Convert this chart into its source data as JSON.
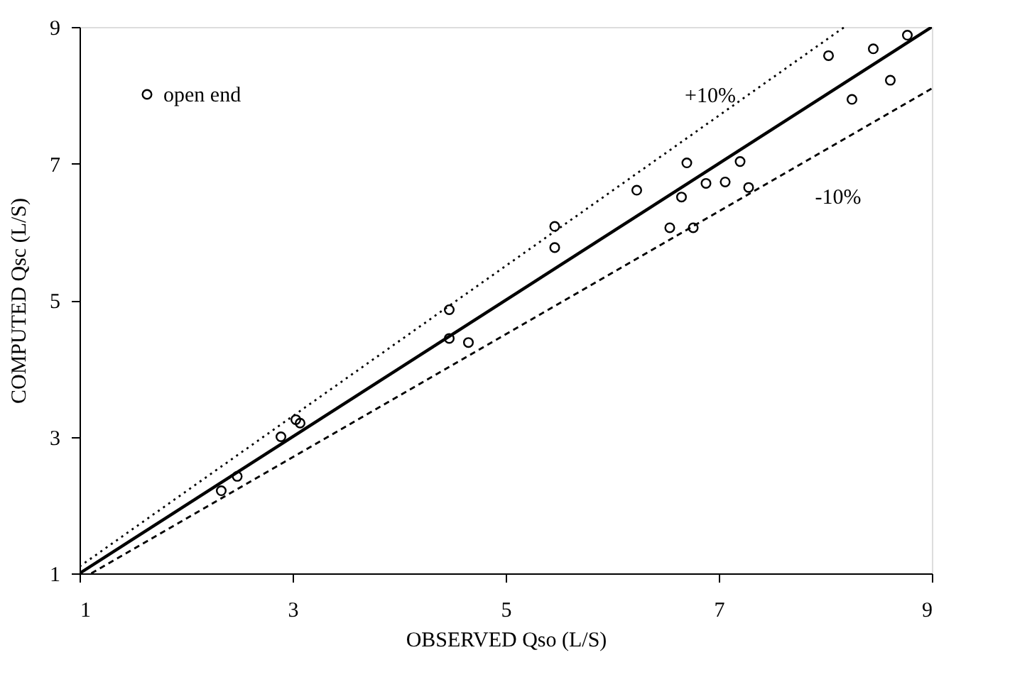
{
  "chart_data": {
    "type": "scatter",
    "xlabel": "OBSERVED Qso (L/S)",
    "ylabel": "COMPUTED Qsc (L/S)",
    "xlim": [
      1,
      9
    ],
    "ylim": [
      1,
      9
    ],
    "xticks": [
      1,
      3,
      5,
      7,
      9
    ],
    "yticks": [
      1,
      3,
      5,
      7,
      9
    ],
    "grid": false,
    "legend": "top left",
    "series": [
      {
        "name": "open end",
        "marker": "circle",
        "color": "#000000",
        "x": [
          2.33,
          2.48,
          2.89,
          3.03,
          3.07,
          4.47,
          4.47,
          4.65,
          5.46,
          5.46,
          6.23,
          6.7,
          6.65,
          6.54,
          6.76,
          6.88,
          7.06,
          7.2,
          7.28,
          8.03,
          8.25,
          8.45,
          8.61,
          8.77
        ],
        "values": [
          2.21,
          2.42,
          3.0,
          3.25,
          3.2,
          4.86,
          4.44,
          4.38,
          6.08,
          5.77,
          6.61,
          7.01,
          6.51,
          6.06,
          6.06,
          6.71,
          6.73,
          7.03,
          6.65,
          8.58,
          7.94,
          8.68,
          8.22,
          8.88
        ]
      },
      {
        "type": "line",
        "color": "#000000",
        "line_style": "solid",
        "x": [
          1,
          9
        ],
        "values": [
          1,
          9
        ]
      },
      {
        "type": "line",
        "color": "#000000",
        "line_style": "dotted",
        "x": [
          1,
          8.18
        ],
        "values": [
          1.1,
          9
        ]
      },
      {
        "type": "line",
        "color": "#000000",
        "line_style": "dashed",
        "x": [
          1.11,
          9
        ],
        "values": [
          1,
          8.1
        ]
      }
    ],
    "annotations": [
      "+10%",
      "-10%"
    ]
  }
}
